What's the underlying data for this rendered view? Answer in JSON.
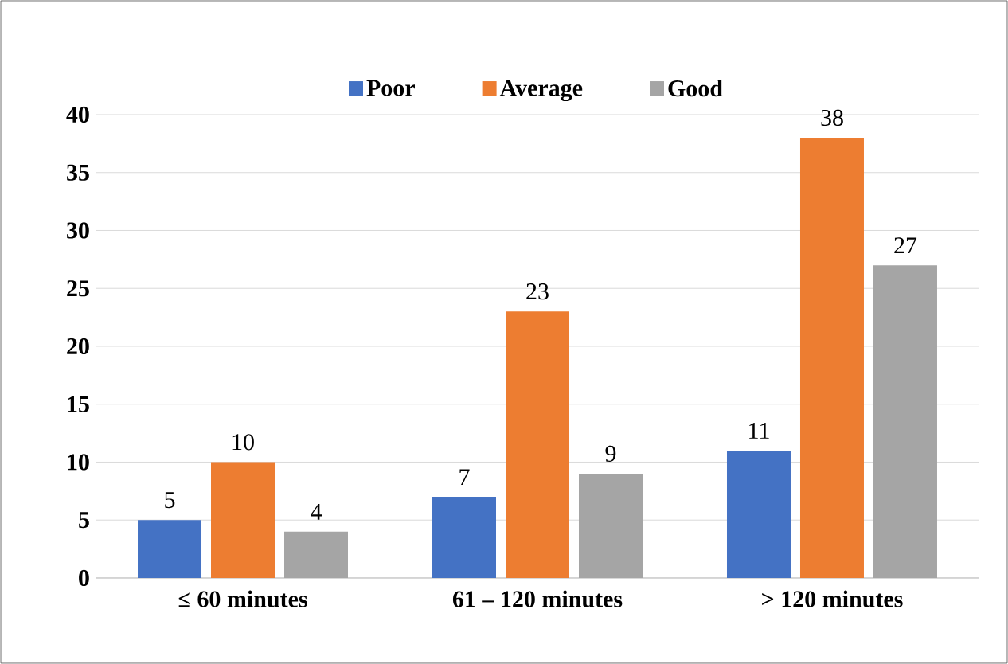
{
  "chart_data": {
    "type": "bar",
    "categories": [
      "≤ 60 minutes",
      "61 – 120 minutes",
      "> 120 minutes"
    ],
    "series": [
      {
        "name": "Poor",
        "color": "#4472c4",
        "values": [
          5,
          7,
          11
        ]
      },
      {
        "name": "Average",
        "color": "#ed7d31",
        "values": [
          10,
          23,
          38
        ]
      },
      {
        "name": "Good",
        "color": "#a5a5a5",
        "values": [
          4,
          9,
          27
        ]
      }
    ],
    "ylim": [
      0,
      40
    ],
    "yticks": [
      0,
      5,
      10,
      15,
      20,
      25,
      30,
      35,
      40
    ],
    "grid": "y",
    "legend": "top",
    "data_labels": true
  }
}
